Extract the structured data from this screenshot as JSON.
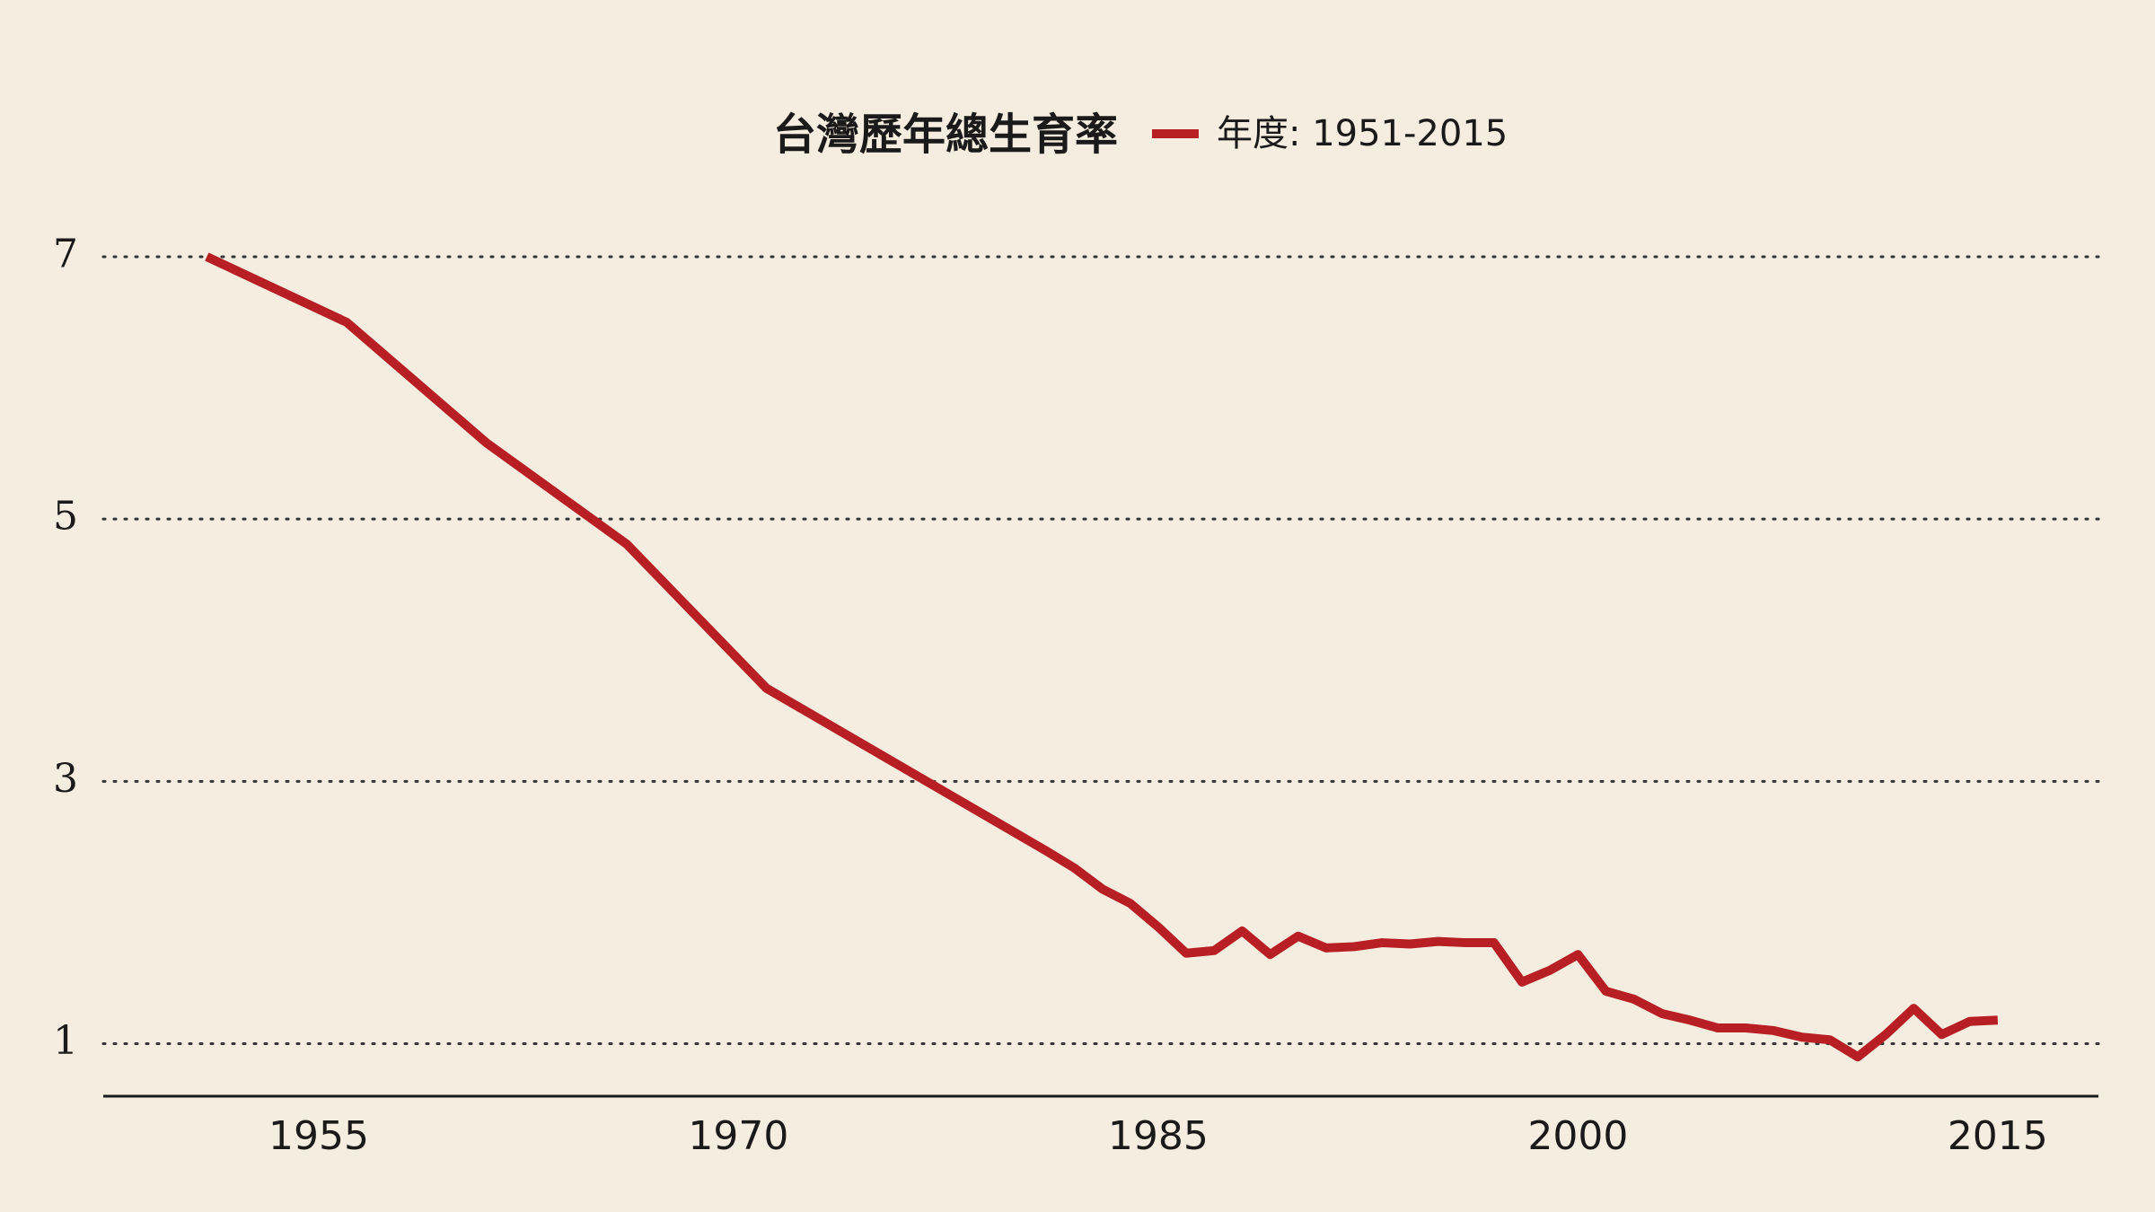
{
  "chart_data": {
    "type": "line",
    "title": "台灣歷年總生育率",
    "x": [
      1951,
      1956,
      1961,
      1966,
      1971,
      1976,
      1981,
      1982,
      1983,
      1984,
      1985,
      1986,
      1987,
      1988,
      1989,
      1990,
      1991,
      1992,
      1993,
      1994,
      1995,
      1996,
      1997,
      1998,
      1999,
      2000,
      2001,
      2002,
      2003,
      2004,
      2005,
      2006,
      2007,
      2008,
      2009,
      2010,
      2011,
      2012,
      2013,
      2014,
      2015
    ],
    "series": [
      {
        "name": "年度: 1951-2015",
        "color": "#b71f24",
        "values": [
          7.0,
          6.5,
          5.58,
          4.81,
          3.71,
          3.09,
          2.47,
          2.34,
          2.18,
          2.07,
          1.89,
          1.69,
          1.71,
          1.86,
          1.68,
          1.82,
          1.73,
          1.74,
          1.77,
          1.76,
          1.78,
          1.77,
          1.77,
          1.47,
          1.56,
          1.68,
          1.4,
          1.34,
          1.23,
          1.18,
          1.12,
          1.12,
          1.1,
          1.05,
          1.03,
          0.9,
          1.07,
          1.27,
          1.07,
          1.17,
          1.18
        ]
      }
    ],
    "xlim": [
      1947.3,
      2018.6
    ],
    "xticks": [
      1955,
      1970,
      1985,
      2000,
      2015
    ],
    "ylim": [
      0.6,
      7.4
    ],
    "yticks": [
      1,
      3,
      5,
      7
    ],
    "grid": true
  }
}
